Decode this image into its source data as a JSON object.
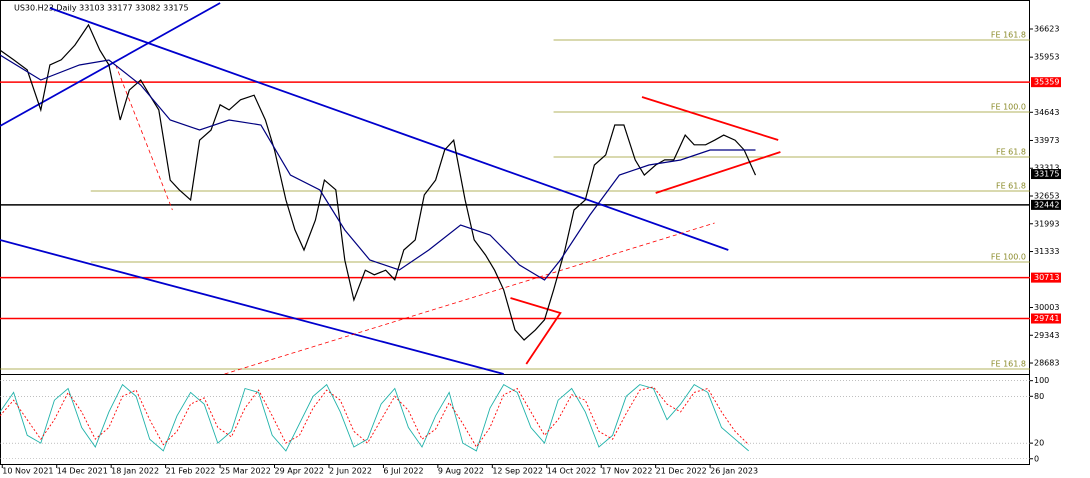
{
  "chart_data": [
    {
      "type": "line",
      "title": "US30.H23,Daily  33103 33177 33082 33175",
      "xlim": [
        0,
        454
      ],
      "ylim": [
        28422,
        37312
      ],
      "yticks": [
        28683,
        29343,
        30003,
        31333,
        31993,
        32653,
        33313,
        33973,
        34643,
        35953,
        36623
      ],
      "xticks": [
        {
          "value": 1,
          "label": "10 Nov 2021"
        },
        {
          "value": 25,
          "label": "14 Dec 2021"
        },
        {
          "value": 49,
          "label": "18 Jan 2022"
        },
        {
          "value": 73,
          "label": "21 Feb 2022"
        },
        {
          "value": 97,
          "label": "25 Mar 2022"
        },
        {
          "value": 121,
          "label": "29 Apr 2022"
        },
        {
          "value": 145,
          "label": "2 Jun 2022"
        },
        {
          "value": 169,
          "label": "6 Jul 2022"
        },
        {
          "value": 193,
          "label": "9 Aug 2022"
        },
        {
          "value": 217,
          "label": "12 Sep 2022"
        },
        {
          "value": 241,
          "label": "14 Oct 2022"
        },
        {
          "value": 265,
          "label": "17 Nov 2022"
        },
        {
          "value": 289,
          "label": "21 Dec 2022"
        },
        {
          "value": 313,
          "label": "26 Jan 2023"
        }
      ],
      "series": [
        {
          "color": "#000000",
          "x": [
            0,
            6,
            12,
            18,
            22,
            27,
            33,
            39,
            44,
            48,
            53,
            57,
            62,
            66,
            70,
            75,
            79,
            84,
            88,
            93,
            97,
            101,
            106,
            112,
            117,
            121,
            126,
            130,
            134,
            139,
            143,
            148,
            152,
            156,
            161,
            165,
            170,
            174,
            178,
            183,
            187,
            192,
            196,
            200,
            205,
            209,
            214,
            218,
            222,
            227,
            231,
            236,
            240,
            244,
            249,
            253,
            258,
            262,
            267,
            271,
            275,
            280,
            284,
            289,
            293,
            297,
            302,
            306,
            311,
            315,
            319,
            324,
            328,
            333
          ],
          "values": [
            36120,
            35890,
            35650,
            34700,
            35770,
            35890,
            36240,
            36720,
            36120,
            35770,
            34460,
            35170,
            35410,
            35050,
            34700,
            33030,
            32800,
            32560,
            33980,
            34220,
            34820,
            34700,
            34940,
            35050,
            34460,
            33750,
            32560,
            31850,
            31370,
            32080,
            33030,
            32800,
            31130,
            30180,
            30890,
            30780,
            30890,
            30660,
            31370,
            31610,
            32680,
            33030,
            33750,
            33980,
            32560,
            31610,
            31250,
            30890,
            30420,
            29470,
            29230,
            29470,
            29710,
            30420,
            31370,
            32320,
            32560,
            33390,
            33630,
            34340,
            34340,
            33510,
            33150,
            33390,
            33510,
            33510,
            34100,
            33870,
            33870,
            33980,
            34100,
            33980,
            33750,
            33150
          ]
        },
        {
          "color": "#000080",
          "x": [
            0,
            18,
            35,
            48,
            62,
            75,
            88,
            101,
            115,
            128,
            141,
            152,
            163,
            176,
            189,
            203,
            216,
            229,
            240,
            247,
            260,
            273,
            286,
            300,
            313,
            326,
            333
          ],
          "values": [
            36005,
            35410,
            35767,
            35886,
            35292,
            34460,
            34222,
            34460,
            34341,
            33152,
            32796,
            31845,
            31132,
            30894,
            31370,
            31964,
            31726,
            31013,
            30656,
            31132,
            32201,
            33152,
            33390,
            33509,
            33747,
            33747,
            33747
          ]
        }
      ],
      "trendlines": [
        {
          "color": "#0000cd",
          "x": [
            0,
            97
          ],
          "values": [
            34317,
            37241
          ]
        },
        {
          "color": "#0000cd",
          "x": [
            22,
            321
          ],
          "values": [
            37122,
            31370
          ]
        },
        {
          "color": "#0000cd",
          "x": [
            0,
            222
          ],
          "values": [
            31607,
            28422
          ]
        },
        {
          "color": "#ff0000",
          "x": [
            283,
            343
          ],
          "values": [
            35006,
            33984
          ]
        },
        {
          "color": "#ff0000",
          "x": [
            289,
            344
          ],
          "values": [
            32725,
            33699
          ]
        },
        {
          "color": "#ff0000",
          "x": [
            225,
            247,
            232
          ],
          "values": [
            30229,
            29872,
            28660
          ]
        },
        {
          "color": "#ff0000",
          "x": [
            99,
            315
          ],
          "values": [
            28422,
            32011
          ],
          "dashed": true
        },
        {
          "color": "#ff0000",
          "x": [
            51,
            76
          ],
          "values": [
            35767,
            32320
          ],
          "dashed": true
        }
      ],
      "hlines": [
        {
          "value": 35359,
          "color": "#ff0000"
        },
        {
          "value": 32442,
          "color": "#000000"
        },
        {
          "value": 30713,
          "color": "#ff0000"
        },
        {
          "value": 29741,
          "color": "#ff0000"
        }
      ],
      "last": 33175,
      "fibo": [
        {
          "label": "FE 161.8",
          "value": 36361,
          "start": 244
        },
        {
          "label": "FE 100.0",
          "value": 34650,
          "start": 244
        },
        {
          "label": "FE 61.8",
          "value": 33580,
          "start": 244
        },
        {
          "label": "FE 61.8",
          "value": 32772,
          "start": 40
        },
        {
          "label": "FE 100.0",
          "value": 31084,
          "start": 40
        },
        {
          "label": "FE 161.8",
          "value": 28541,
          "start": 0
        }
      ]
    },
    {
      "type": "oscillator",
      "xlim": [
        0,
        454
      ],
      "ylim": [
        -8,
        106
      ],
      "yticks": [
        0,
        20,
        80,
        100
      ],
      "series": [
        {
          "color": "#20b2aa",
          "x": [
            0,
            6,
            12,
            18,
            24,
            30,
            36,
            42,
            48,
            54,
            60,
            66,
            72,
            78,
            84,
            90,
            96,
            102,
            108,
            114,
            120,
            126,
            132,
            138,
            144,
            150,
            156,
            162,
            168,
            174,
            180,
            186,
            192,
            198,
            204,
            210,
            216,
            222,
            228,
            234,
            240,
            246,
            252,
            258,
            264,
            270,
            276,
            282,
            288,
            294,
            300,
            306,
            312,
            318,
            324,
            330
          ],
          "values": [
            60,
            85,
            30,
            20,
            75,
            90,
            40,
            15,
            60,
            95,
            80,
            25,
            10,
            55,
            85,
            70,
            20,
            35,
            90,
            85,
            30,
            10,
            45,
            80,
            95,
            60,
            15,
            25,
            70,
            90,
            40,
            15,
            55,
            85,
            20,
            10,
            65,
            95,
            85,
            40,
            20,
            75,
            90,
            60,
            15,
            30,
            80,
            95,
            90,
            50,
            70,
            95,
            85,
            40,
            25,
            10
          ]
        },
        {
          "color": "#ff0000",
          "dashed": true,
          "x": [
            0,
            6,
            12,
            18,
            24,
            30,
            36,
            42,
            48,
            54,
            60,
            66,
            72,
            78,
            84,
            90,
            96,
            102,
            108,
            114,
            120,
            126,
            132,
            138,
            144,
            150,
            156,
            162,
            168,
            174,
            180,
            186,
            192,
            198,
            204,
            210,
            216,
            222,
            228,
            234,
            240,
            246,
            252,
            258,
            264,
            270,
            276,
            282,
            288,
            294,
            300,
            306,
            312,
            318,
            324,
            330
          ],
          "values": [
            55,
            75,
            50,
            25,
            50,
            85,
            60,
            25,
            40,
            80,
            88,
            50,
            18,
            35,
            70,
            78,
            40,
            28,
            65,
            88,
            55,
            20,
            30,
            65,
            88,
            75,
            35,
            20,
            50,
            80,
            62,
            25,
            38,
            72,
            45,
            15,
            40,
            82,
            90,
            60,
            30,
            50,
            82,
            75,
            35,
            25,
            58,
            88,
            92,
            70,
            60,
            85,
            90,
            60,
            35,
            18
          ]
        }
      ]
    }
  ]
}
